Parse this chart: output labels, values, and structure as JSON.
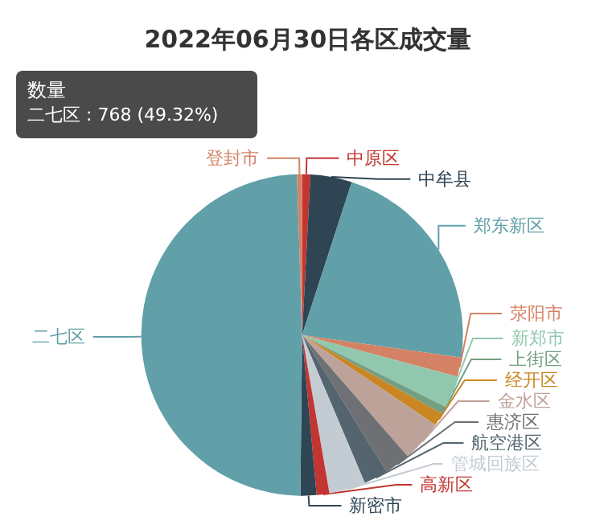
{
  "chart_data": {
    "type": "pie",
    "title": "2022年06月30日各区成交量",
    "categories": [
      "中原区",
      "中牟县",
      "郑东新区",
      "荥阳市",
      "新郑市",
      "上街区",
      "经开区",
      "金水区",
      "惠济区",
      "航空港区",
      "管城回族区",
      "高新区",
      "新密市",
      "二七区",
      "登封市"
    ],
    "values": [
      0.83,
      4.17,
      22.25,
      1.93,
      3.21,
      0.77,
      1.28,
      4.17,
      2.57,
      2.44,
      3.66,
      1.28,
      1.61,
      49.32,
      0.51
    ],
    "colors": [
      "#c23531",
      "#2f4554",
      "#61a0a8",
      "#d48265",
      "#91c7ae",
      "#749f83",
      "#ca8622",
      "#bda29a",
      "#6e7074",
      "#546570",
      "#c4ccd3",
      "#c23531",
      "#2f4554",
      "#61a0a8",
      "#d48265"
    ],
    "legend": false,
    "annotations": [
      "数量",
      "二七区 : 768 (49.32%)"
    ]
  }
}
